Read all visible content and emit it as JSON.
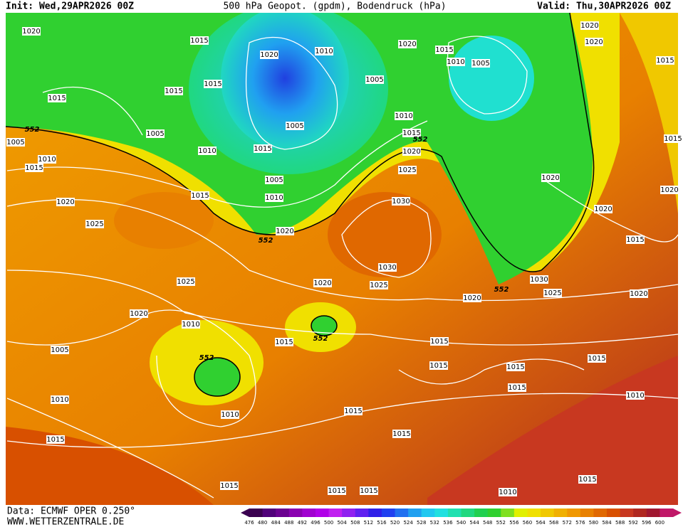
{
  "header": {
    "init": "Init: Wed,29APR2026 00Z",
    "title": "500 hPa Geopot. (gpdm), Bodendruck (hPa)",
    "valid": "Valid: Thu,30APR2026 00Z"
  },
  "footer": {
    "source": "Data: ECMWF OPER 0.250°",
    "site": "WWW.WETTERZENTRALE.DE"
  },
  "colorbar": {
    "levels": [
      476,
      480,
      484,
      488,
      492,
      496,
      500,
      504,
      508,
      512,
      516,
      520,
      524,
      528,
      532,
      536,
      540,
      544,
      548,
      552,
      556,
      560,
      564,
      568,
      572,
      576,
      580,
      584,
      588,
      592,
      596,
      600
    ],
    "colors": [
      "#3a0050",
      "#50007a",
      "#6a0090",
      "#8a00b0",
      "#a000d0",
      "#b000e8",
      "#c020f0",
      "#9020f0",
      "#6020f0",
      "#3020e8",
      "#2040f0",
      "#2070f0",
      "#20a0f0",
      "#20c8f0",
      "#20e0e0",
      "#20e0b0",
      "#20d880",
      "#20d050",
      "#30d030",
      "#80e020",
      "#e0f000",
      "#f0e000",
      "#f0c800",
      "#f0b000",
      "#f09800",
      "#e88000",
      "#e06800",
      "#d85000",
      "#c83820",
      "#b02820",
      "#a01830",
      "#c01868"
    ]
  },
  "isobar_labels": [
    "1020",
    "1015",
    "1015",
    "1015",
    "1015",
    "1020",
    "1010",
    "1020",
    "1015",
    "1010",
    "1005",
    "1020",
    "1020",
    "1015",
    "1005",
    "1005",
    "1005",
    "1010",
    "1015",
    "1020",
    "1025",
    "1015",
    "1010",
    "1005",
    "1010",
    "1015",
    "1005",
    "1010",
    "1015",
    "1020",
    "1025",
    "1020",
    "1030",
    "1030",
    "1025",
    "1020",
    "1025",
    "1020",
    "1010",
    "1015",
    "1005",
    "1010",
    "1015",
    "1010",
    "1015",
    "1015",
    "1015",
    "1015",
    "1010",
    "1015",
    "1010",
    "1015",
    "1015",
    "1015",
    "1015",
    "1015",
    "1020",
    "1030",
    "1025",
    "1020",
    "1015",
    "1020",
    "1020",
    "1020",
    "1015",
    "1015"
  ],
  "height_labels": [
    "552",
    "552",
    "552",
    "552",
    "552",
    "552"
  ]
}
